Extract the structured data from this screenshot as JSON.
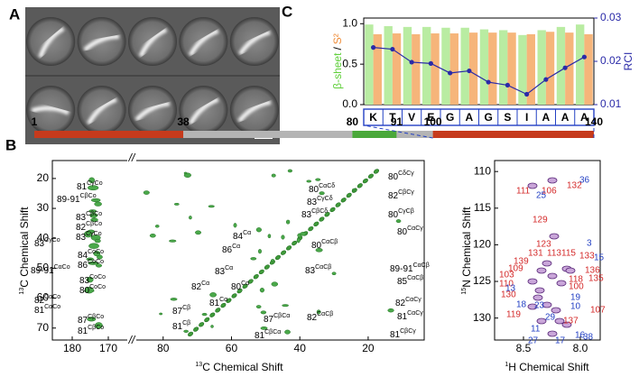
{
  "panels": {
    "a": "A",
    "b": "B",
    "c": "C"
  },
  "chart_data": {
    "type": "bar",
    "categories": [
      "K",
      "T",
      "V",
      "E",
      "G",
      "A",
      "G",
      "S",
      "I",
      "A",
      "A",
      "A"
    ],
    "series": [
      {
        "name": "β-sheet",
        "color": "#b9eca2",
        "values": [
          0.99,
          0.97,
          0.96,
          0.96,
          0.95,
          0.95,
          0.93,
          0.92,
          0.86,
          0.92,
          0.96,
          0.99
        ]
      },
      {
        "name": "S²",
        "color": "#f6b57a",
        "values": [
          0.87,
          0.88,
          0.87,
          0.88,
          0.88,
          0.89,
          0.89,
          0.89,
          0.87,
          0.9,
          0.89,
          0.87
        ]
      },
      {
        "name": "RCI",
        "color": "#2a2aa8",
        "type": "line",
        "axis": "y2",
        "values": [
          0.0232,
          0.0228,
          0.0198,
          0.0195,
          0.0173,
          0.0178,
          0.0152,
          0.0145,
          0.0124,
          0.0158,
          0.0185,
          0.021
        ]
      }
    ],
    "label_separator": "/",
    "ylim": [
      0,
      1.07
    ],
    "yticks": [
      {
        "value": 0,
        "label": "0.0"
      },
      {
        "value": 0.5,
        "label": "0.5"
      },
      {
        "value": 1,
        "label": "1.0"
      }
    ],
    "y2lim": [
      0.01,
      0.03
    ],
    "y2ticks": [
      0.01,
      0.02,
      0.03
    ]
  },
  "sequence": {
    "boundaries": [
      1,
      38,
      80,
      91,
      100,
      140
    ],
    "segment_colors": [
      "#c63a1c",
      "#b4b4b4",
      "#4aa83a",
      "#b4b4b4",
      "#c63a1c"
    ]
  },
  "c13": {
    "y_label": {
      "sup": "13",
      "text": "C Chemical Shift"
    },
    "x_label": {
      "sup": "13",
      "text": "C Chemical Shift"
    },
    "ylim": [
      14,
      74
    ],
    "yticks": [
      20,
      30,
      40,
      50,
      60,
      70
    ],
    "strip": {
      "xlim": [
        185.5,
        165
      ],
      "xticks": [
        180,
        170
      ]
    },
    "main": {
      "xlim": [
        87.6,
        3.6
      ],
      "xticks": [
        80,
        60,
        40,
        20
      ]
    },
    "break": "//",
    "peaks": [
      {
        "n": "81",
        "sup": "CγCo"
      },
      {
        "n": "89-91",
        "sup": "CβCo"
      },
      {
        "n": "83",
        "sup": "CβCo"
      },
      {
        "n": "82",
        "sup": "CβCo"
      },
      {
        "n": "83",
        "sup": "CγCo"
      },
      {
        "n": "83",
        "sup": "CγCo"
      },
      {
        "n": "84",
        "sup": "CoCo"
      },
      {
        "n": "86",
        "sup": "CoCo"
      },
      {
        "n": "89-91",
        "sup": "CαCo"
      },
      {
        "n": "83",
        "sup": "CoCo"
      },
      {
        "n": "80",
        "sup": "CoCo"
      },
      {
        "n": "82",
        "sup": "CαCo"
      },
      {
        "n": "81",
        "sup": "CαCo"
      },
      {
        "n": "87",
        "sup": "CβCo"
      },
      {
        "n": "81",
        "sup": "CβCo"
      },
      {
        "n": "80",
        "sup": "CδCγ"
      },
      {
        "n": "80",
        "sup": "CαCδ"
      },
      {
        "n": "83",
        "sup": "CγCδ"
      },
      {
        "n": "83",
        "sup": "CβCδ"
      },
      {
        "n": "82",
        "sup": "CβCγ"
      },
      {
        "n": "80",
        "sup": "CγCβ"
      },
      {
        "n": "80",
        "sup": "CαCγ"
      },
      {
        "n": "84",
        "sup": "Cα"
      },
      {
        "n": "86",
        "sup": "Cα"
      },
      {
        "n": "80",
        "sup": "CαCβ"
      },
      {
        "n": "83",
        "sup": "Cα"
      },
      {
        "n": "80",
        "sup": "Cα"
      },
      {
        "n": "82",
        "sup": "Cα"
      },
      {
        "n": "87",
        "sup": "Cβ"
      },
      {
        "n": "81",
        "sup": "Cα"
      },
      {
        "n": "81",
        "sup": "Cβ"
      },
      {
        "n": "83",
        "sup": "CαCβ"
      },
      {
        "n": "89-91",
        "sup": "CαCβ"
      },
      {
        "n": "85",
        "sup": "CαCβ"
      },
      {
        "n": "82",
        "sup": "CαCβ"
      },
      {
        "n": "82",
        "sup": "CαCγ"
      },
      {
        "n": "81",
        "sup": "CαCγ"
      },
      {
        "n": "87",
        "sup": "CβCα"
      },
      {
        "n": "81",
        "sup": "CβCα"
      },
      {
        "n": "81",
        "sup": "CβCγ"
      }
    ]
  },
  "n15": {
    "y_label": {
      "sup": "15",
      "text": "N Chemical Shift"
    },
    "x_label": {
      "sup": "1",
      "text": "H Chemical Shift"
    },
    "xlim": [
      8.754,
      7.825
    ],
    "xticks": [
      8.5,
      {
        "value": 8,
        "label": "8.0"
      }
    ],
    "ylim": [
      108.5,
      133
    ],
    "yticks": [
      110,
      115,
      120,
      125,
      130
    ],
    "peaks": [
      {
        "label": "111",
        "color": "#d42a2a"
      },
      {
        "label": "106",
        "color": "#d42a2a"
      },
      {
        "label": "132",
        "color": "#d42a2a"
      },
      {
        "label": "129",
        "color": "#d42a2a"
      },
      {
        "label": "123",
        "color": "#d42a2a"
      },
      {
        "label": "131",
        "color": "#d42a2a"
      },
      {
        "label": "113",
        "color": "#d42a2a"
      },
      {
        "label": "115",
        "color": "#d42a2a"
      },
      {
        "label": "133",
        "color": "#d42a2a"
      },
      {
        "label": "139",
        "color": "#d42a2a"
      },
      {
        "label": "109",
        "color": "#d42a2a"
      },
      {
        "label": "103",
        "color": "#d42a2a"
      },
      {
        "label": "110",
        "color": "#d42a2a"
      },
      {
        "label": "130",
        "color": "#d42a2a"
      },
      {
        "label": "118",
        "color": "#d42a2a"
      },
      {
        "label": "135",
        "color": "#d42a2a"
      },
      {
        "label": "100",
        "color": "#d42a2a"
      },
      {
        "label": "136",
        "color": "#d42a2a"
      },
      {
        "label": "119",
        "color": "#d42a2a"
      },
      {
        "label": "137",
        "color": "#d42a2a"
      },
      {
        "label": "107",
        "color": "#d42a2a"
      },
      {
        "label": "36",
        "color": "#2340c4"
      },
      {
        "label": "25",
        "color": "#2340c4"
      },
      {
        "label": "3",
        "color": "#2340c4"
      },
      {
        "label": "15",
        "color": "#2340c4"
      },
      {
        "label": "13",
        "color": "#2340c4"
      },
      {
        "label": "18",
        "color": "#2340c4"
      },
      {
        "label": "23",
        "color": "#2340c4"
      },
      {
        "label": "19",
        "color": "#2340c4"
      },
      {
        "label": "10",
        "color": "#2340c4"
      },
      {
        "label": "29",
        "color": "#2340c4"
      },
      {
        "label": "11",
        "color": "#2340c4"
      },
      {
        "label": "27",
        "color": "#2340c4"
      },
      {
        "label": "17",
        "color": "#2340c4"
      },
      {
        "label": "16",
        "color": "#2340c4"
      },
      {
        "label": "38",
        "color": "#2340c4"
      }
    ]
  }
}
